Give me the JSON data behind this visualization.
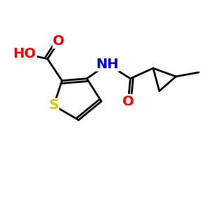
{
  "background_color": "#ffffff",
  "atom_colors": {
    "O": "#ff0000",
    "N": "#0000cc",
    "S": "#cccc00"
  },
  "bond_color": "#000000",
  "bond_width": 2.0,
  "font_size": 14
}
